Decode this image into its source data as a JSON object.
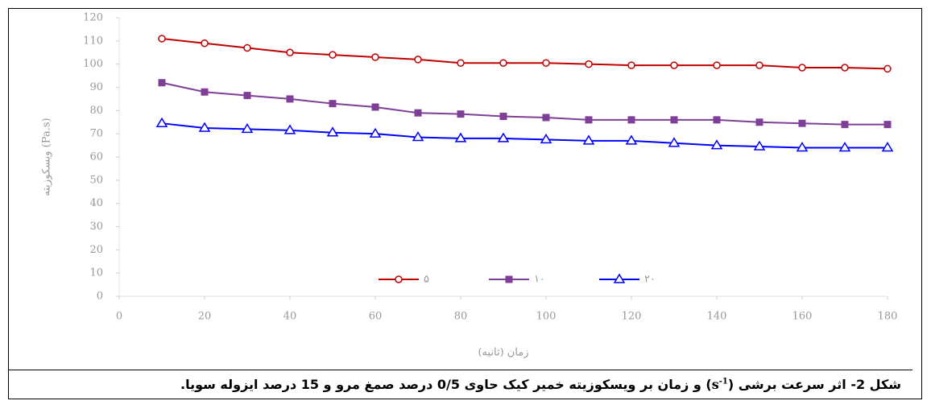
{
  "chart_data": {
    "type": "line",
    "y_label": "ویسکوزیته (Pa.s)",
    "x_label": "زمان (ثانیه)",
    "x": [
      10,
      20,
      30,
      40,
      50,
      60,
      70,
      80,
      90,
      100,
      110,
      120,
      130,
      140,
      150,
      160,
      170,
      180
    ],
    "series": [
      {
        "name": "۵",
        "color": "#c00000",
        "marker": "circle",
        "values": [
          111,
          109,
          107,
          105,
          104,
          103,
          102,
          100.5,
          100.5,
          100.5,
          100,
          99.5,
          99.5,
          99.5,
          99.5,
          98.5,
          98.5,
          98
        ]
      },
      {
        "name": "۱۰",
        "color": "#7f3f98",
        "marker": "square",
        "values": [
          92,
          88,
          86.5,
          85,
          83,
          81.5,
          79,
          78.5,
          77.5,
          77,
          76,
          76,
          76,
          76,
          75,
          74.5,
          74,
          74
        ]
      },
      {
        "name": "۲۰",
        "color": "#0000ff",
        "marker": "triangle",
        "values": [
          74.5,
          72.5,
          72,
          71.5,
          70.5,
          70,
          68.5,
          68,
          68,
          67.5,
          67,
          67,
          66,
          65,
          64.5,
          64,
          64,
          64
        ]
      }
    ],
    "xlim": [
      0,
      180
    ],
    "xticks": [
      0,
      20,
      40,
      60,
      80,
      100,
      120,
      140,
      160,
      180
    ],
    "ylim": [
      0,
      120
    ],
    "yticks": [
      0,
      10,
      20,
      30,
      40,
      50,
      60,
      70,
      80,
      90,
      100,
      110,
      120
    ],
    "legend": "bottom",
    "caption": {
      "before": "شکل 2- اثر سرعت برشی (",
      "unit": "s",
      "sup": "-1",
      "after": ") و زمان بر ویسکوزیته خمیر کیک حاوی 0/5 درصد صمغ مرو و 15 درصد ایزوله سویا."
    }
  }
}
